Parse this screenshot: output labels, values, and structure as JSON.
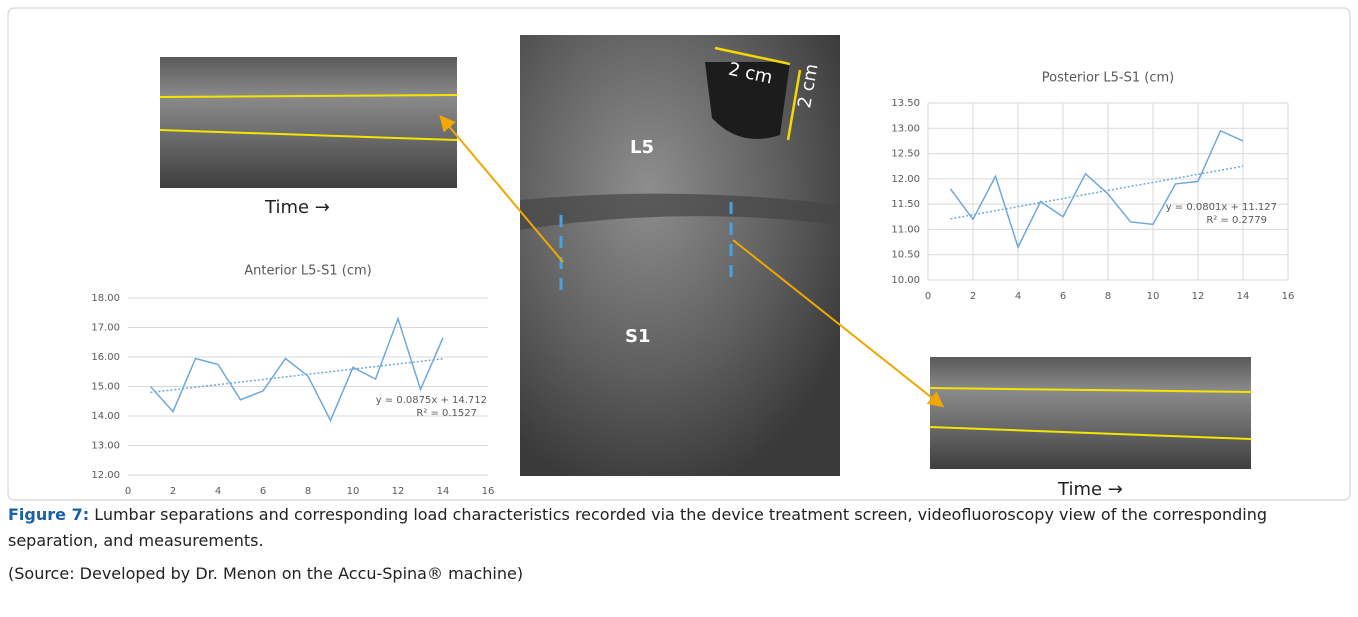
{
  "chart_data": [
    {
      "type": "line",
      "title": "Anterior L5-S1 (cm)",
      "color": "#6fa8dc",
      "x": [
        1,
        2,
        3,
        4,
        5,
        6,
        7,
        8,
        9,
        10,
        11,
        12,
        13,
        14
      ],
      "values": [
        15.0,
        14.15,
        15.95,
        15.75,
        14.55,
        14.85,
        15.95,
        15.35,
        13.85,
        15.65,
        15.25,
        17.3,
        14.9,
        16.65
      ],
      "trend": {
        "x": [
          1,
          14
        ],
        "values": [
          14.8,
          15.94
        ]
      },
      "annotations": [
        "y = 0.0875x + 14.712",
        "R² = 0.1527"
      ],
      "xlim": [
        0,
        16
      ],
      "xticks": [
        0,
        2,
        4,
        6,
        8,
        10,
        12,
        14,
        16
      ],
      "ylim": [
        12,
        18
      ],
      "yticks": [
        {
          "value": 12,
          "label": "12.00"
        },
        {
          "value": 13,
          "label": "13.00"
        },
        {
          "value": 14,
          "label": "14.00"
        },
        {
          "value": 15,
          "label": "15.00"
        },
        {
          "value": 16,
          "label": "16.00"
        },
        {
          "value": 17,
          "label": "17.00"
        },
        {
          "value": 18,
          "label": "18.00"
        }
      ],
      "grid": "y"
    },
    {
      "type": "line",
      "title": "Posterior L5-S1 (cm)",
      "color": "#6fa8dc",
      "x": [
        1,
        2,
        3,
        4,
        5,
        6,
        7,
        8,
        9,
        10,
        11,
        12,
        13,
        14
      ],
      "values": [
        11.8,
        11.2,
        12.05,
        10.65,
        11.55,
        11.25,
        12.1,
        11.7,
        11.15,
        11.1,
        11.9,
        11.95,
        12.95,
        12.75
      ],
      "trend": {
        "x": [
          1,
          14
        ],
        "values": [
          11.21,
          12.25
        ]
      },
      "annotations": [
        "y = 0.0801x + 11.127",
        "R² = 0.2779"
      ],
      "xlim": [
        0,
        16
      ],
      "xticks": [
        0,
        2,
        4,
        6,
        8,
        10,
        12,
        14,
        16
      ],
      "ylim": [
        10,
        13.5
      ],
      "yticks": [
        {
          "value": 10,
          "label": "10.00"
        },
        {
          "value": 10.5,
          "label": "10.50"
        },
        {
          "value": 11,
          "label": "11.00"
        },
        {
          "value": 11.5,
          "label": "11.50"
        },
        {
          "value": 12,
          "label": "12.00"
        },
        {
          "value": 12.5,
          "label": "12.50"
        },
        {
          "value": 13,
          "label": "13.00"
        },
        {
          "value": 13.5,
          "label": "13.50"
        }
      ],
      "grid": "both"
    }
  ],
  "images": {
    "fluoro_labels": [
      "L5",
      "S1",
      "2 cm",
      "2 cm"
    ],
    "time_labels": [
      "Time →",
      "Time →"
    ]
  },
  "caption": {
    "label": "Figure 7:",
    "text": " Lumbar separations and corresponding load characteristics recorded via the device treatment screen, videofluoroscopy view of the corresponding separation, and measurements.",
    "source": "(Source: Developed by Dr. Menon on the Accu-Spina® machine)"
  }
}
